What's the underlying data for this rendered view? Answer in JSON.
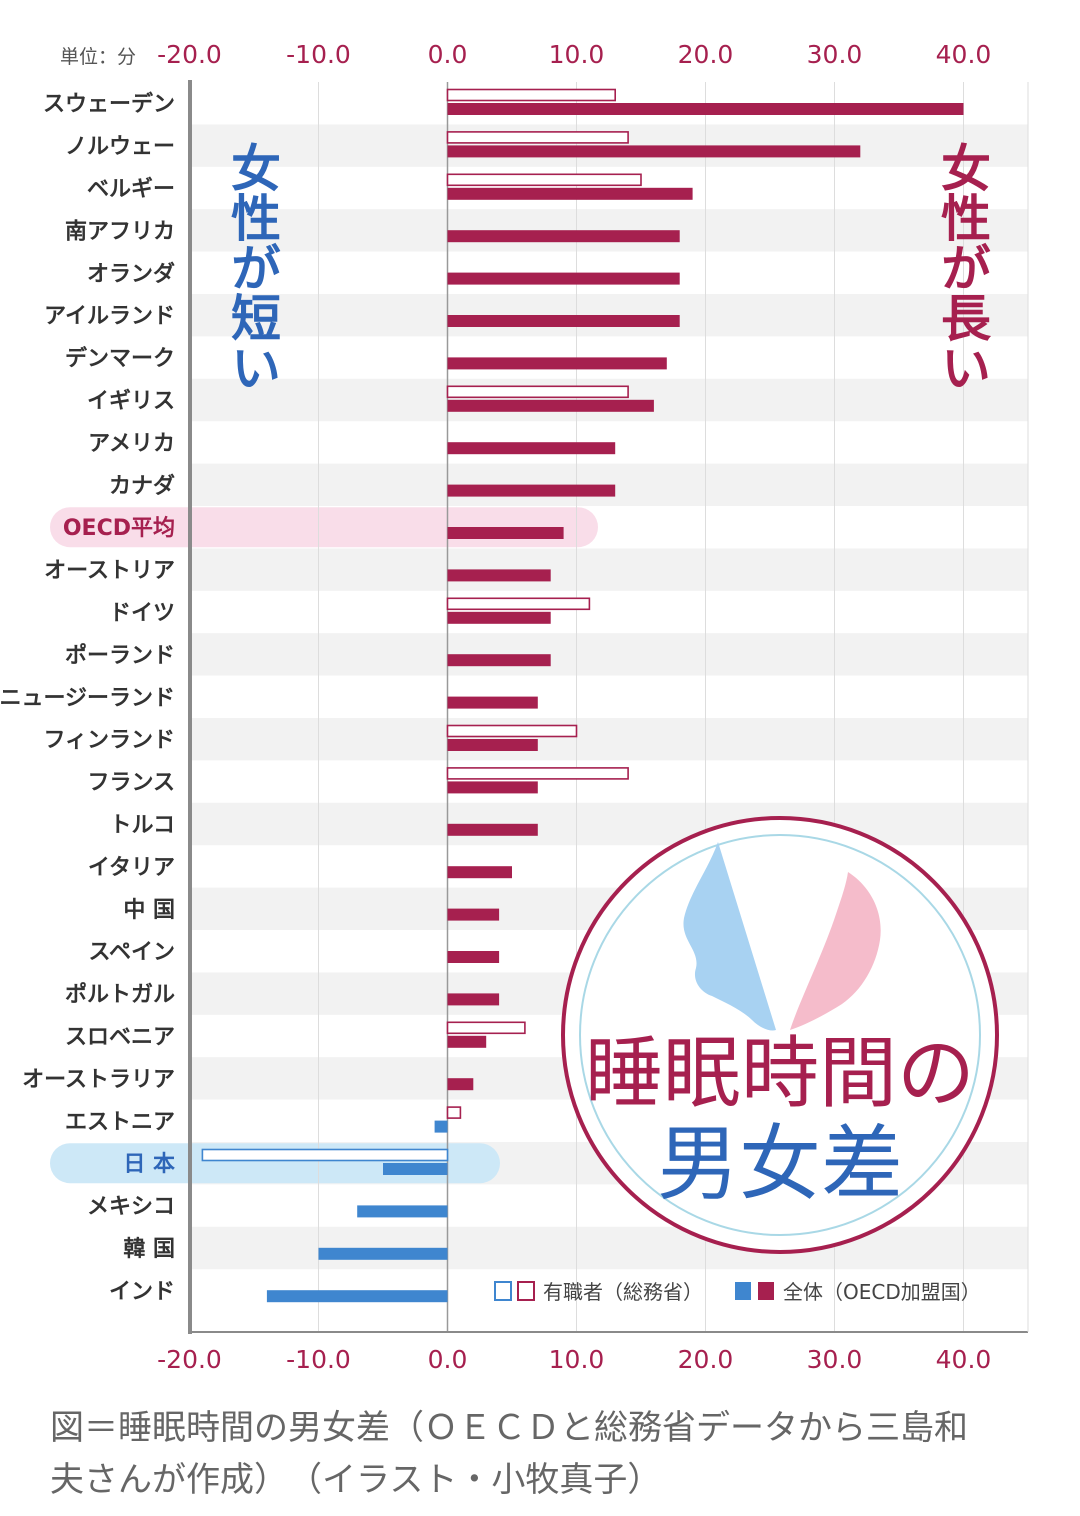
{
  "chart_data": {
    "type": "bar",
    "orientation": "horizontal",
    "unit_label": "単位：分",
    "x_ticks": [
      "-20.0",
      "-10.0",
      "0.0",
      "10.0",
      "20.0",
      "30.0",
      "40.0"
    ],
    "xlim": [
      -20,
      40
    ],
    "grid": true,
    "categories": [
      "スウェーデン",
      "ノルウェー",
      "ベルギー",
      "南アフリカ",
      "オランダ",
      "アイルランド",
      "デンマーク",
      "イギリス",
      "アメリカ",
      "カナダ",
      "OECD平均",
      "オーストリア",
      "ドイツ",
      "ポーランド",
      "ニュージーランド",
      "フィンランド",
      "フランス",
      "トルコ",
      "イタリア",
      "中 国",
      "スペイン",
      "ポルトガル",
      "スロベニア",
      "オーストラリア",
      "エストニア",
      "日 本",
      "メキシコ",
      "韓 国",
      "インド"
    ],
    "highlight": [
      {
        "category": "OECD平均",
        "color": "#f9dde9"
      },
      {
        "category": "日 本",
        "color": "#cde8f7"
      }
    ],
    "series": [
      {
        "name": "有職者（総務省）",
        "values": [
          13,
          14,
          15,
          null,
          null,
          null,
          null,
          14,
          null,
          null,
          null,
          null,
          11,
          null,
          null,
          10,
          14,
          null,
          null,
          null,
          null,
          null,
          6,
          null,
          1,
          -19,
          null,
          null,
          null
        ]
      },
      {
        "name": "全体（OECD加盟国）",
        "values": [
          40,
          32,
          19,
          18,
          18,
          18,
          17,
          16,
          13,
          13,
          9,
          8,
          8,
          8,
          7,
          7,
          7,
          7,
          5,
          4,
          4,
          4,
          3,
          2,
          -1,
          -5,
          -7,
          -10,
          -14
        ]
      }
    ],
    "legend": {
      "placement": "bottom-right",
      "work_label": "有職者（総務省）",
      "all_label": "全体（OECD加盟国）"
    },
    "annotations": {
      "left": "女性が短い",
      "right": "女性が長い"
    },
    "colors": {
      "positive": "#a6204f",
      "negative": "#3f86cf",
      "grid": "#dddddd",
      "band": "#f2f2f2",
      "axis": "#8a8a8a"
    }
  },
  "illustration": {
    "title_line1": "睡眠時間の",
    "title_line2": "男女差"
  },
  "caption": {
    "line1": "図＝睡眠時間の男女差（ＯＥＣＤと総務省データから三島和",
    "line2": "夫さんが作成）　（イラスト・小牧真子）"
  }
}
